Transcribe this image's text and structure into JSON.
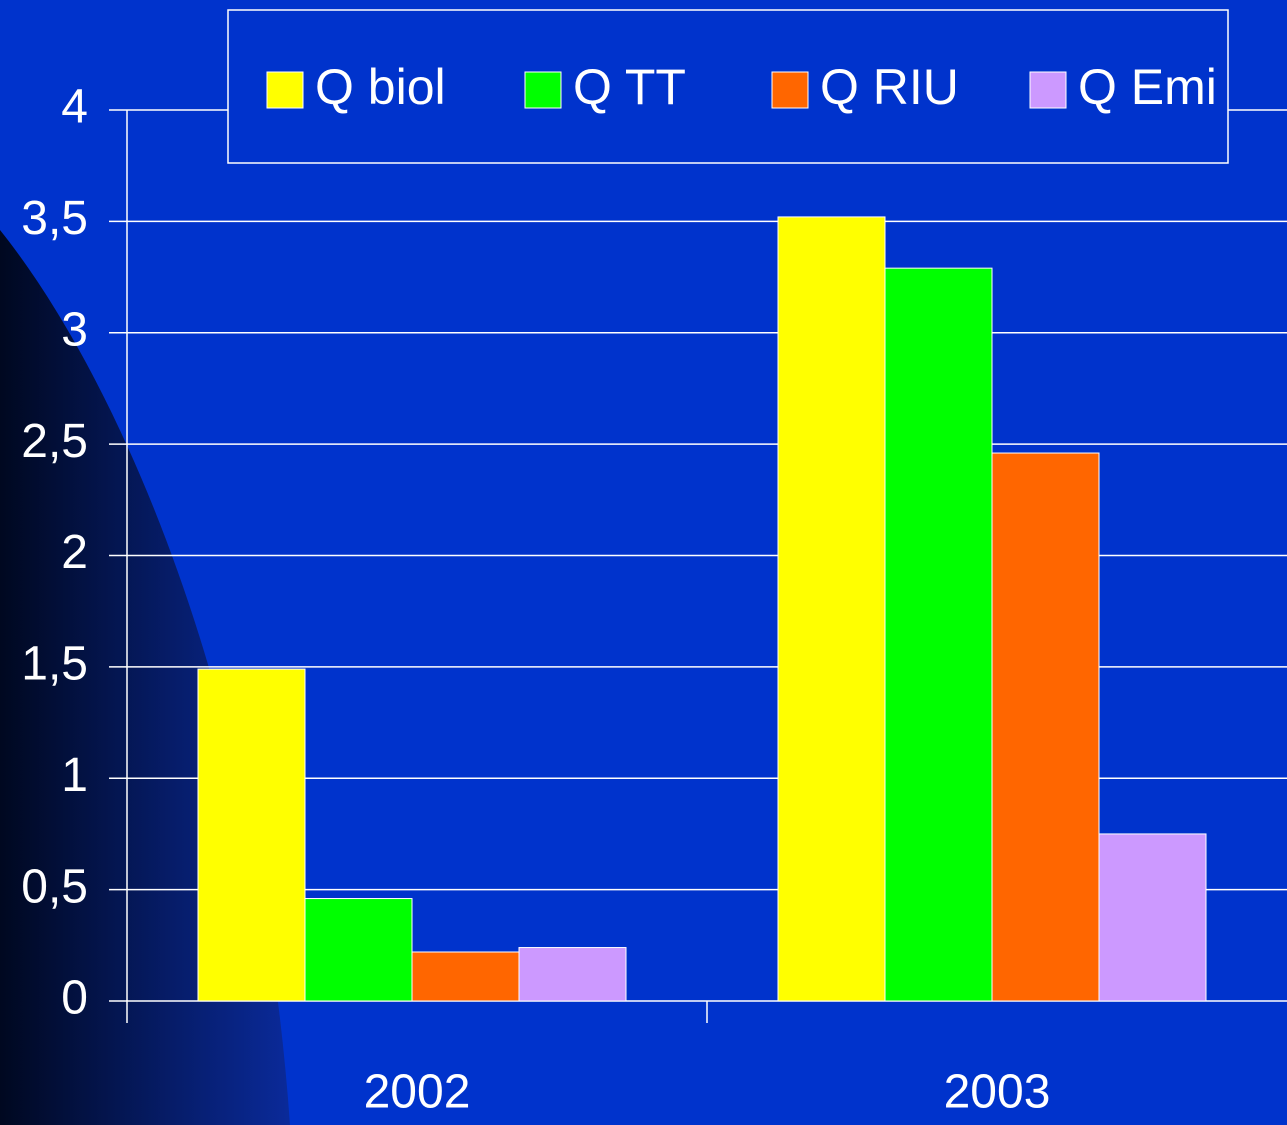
{
  "chart_data": {
    "type": "bar",
    "categories": [
      "2002",
      "2003"
    ],
    "series": [
      {
        "name": "Q biol",
        "color": "#ffff00",
        "values": [
          1.49,
          3.52
        ]
      },
      {
        "name": "Q TT",
        "color": "#00ff00",
        "values": [
          0.46,
          3.29
        ]
      },
      {
        "name": "Q RIU",
        "color": "#ff6600",
        "values": [
          0.22,
          2.46
        ]
      },
      {
        "name": "Q Emi",
        "color": "#cc99ff",
        "values": [
          0.24,
          0.75
        ]
      }
    ],
    "ylim": [
      0,
      4
    ],
    "yticks": [
      0,
      {
        "value": 0.5,
        "label": "0,5"
      },
      1,
      {
        "value": 1.5,
        "label": "1,5"
      },
      2,
      {
        "value": 2.5,
        "label": "2,5"
      },
      3,
      {
        "value": 3.5,
        "label": "3,5"
      },
      4
    ],
    "grid": true,
    "legend": "top"
  }
}
